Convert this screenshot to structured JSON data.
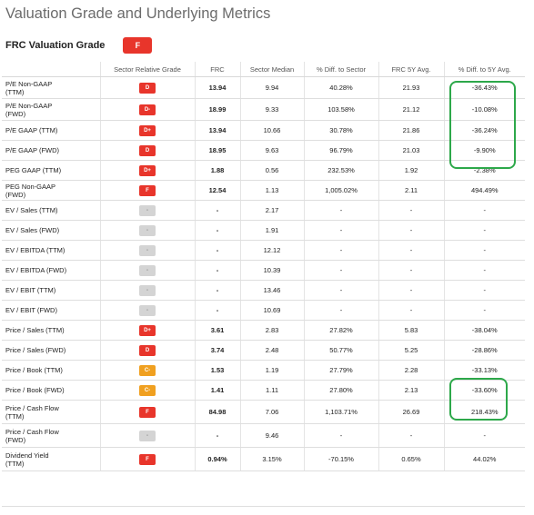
{
  "page_title": "Valuation Grade and Underlying Metrics",
  "valuation_grade": {
    "label": "FRC Valuation Grade",
    "grade": "F",
    "color": "#e8352b"
  },
  "columns": [
    "",
    "Sector Relative Grade",
    "FRC",
    "Sector Median",
    "% Diff. to Sector",
    "FRC 5Y Avg.",
    "% Diff. to 5Y Avg."
  ],
  "grade_colors": {
    "D": "#e8352b",
    "D-": "#e8352b",
    "D+": "#e8352b",
    "F": "#e8352b",
    "C-": "#f0a020",
    "-": "#d4d4d4"
  },
  "rows": [
    {
      "metric": [
        "P/E Non-GAAP",
        "(TTM)"
      ],
      "grade": "D",
      "frc": "13.94",
      "sector_median": "9.94",
      "diff_sector": "40.28%",
      "avg5y": "21.93",
      "diff_5y": "-36.43%"
    },
    {
      "metric": [
        "P/E Non-GAAP",
        "(FWD)"
      ],
      "grade": "D-",
      "frc": "18.99",
      "sector_median": "9.33",
      "diff_sector": "103.58%",
      "avg5y": "21.12",
      "diff_5y": "-10.08%"
    },
    {
      "metric": [
        "P/E GAAP (TTM)"
      ],
      "grade": "D+",
      "frc": "13.94",
      "sector_median": "10.66",
      "diff_sector": "30.78%",
      "avg5y": "21.86",
      "diff_5y": "-36.24%"
    },
    {
      "metric": [
        "P/E GAAP (FWD)"
      ],
      "grade": "D",
      "frc": "18.95",
      "sector_median": "9.63",
      "diff_sector": "96.79%",
      "avg5y": "21.03",
      "diff_5y": "-9.90%"
    },
    {
      "metric": [
        "PEG GAAP (TTM)"
      ],
      "grade": "D+",
      "frc": "1.88",
      "sector_median": "0.56",
      "diff_sector": "232.53%",
      "avg5y": "1.92",
      "diff_5y": "-2.38%"
    },
    {
      "metric": [
        "PEG Non-GAAP",
        "(FWD)"
      ],
      "grade": "F",
      "frc": "12.54",
      "sector_median": "1.13",
      "diff_sector": "1,005.02%",
      "avg5y": "2.11",
      "diff_5y": "494.49%"
    },
    {
      "metric": [
        "EV / Sales (TTM)"
      ],
      "grade": "-",
      "frc": "-",
      "sector_median": "2.17",
      "diff_sector": "-",
      "avg5y": "-",
      "diff_5y": "-"
    },
    {
      "metric": [
        "EV / Sales (FWD)"
      ],
      "grade": "-",
      "frc": "-",
      "sector_median": "1.91",
      "diff_sector": "-",
      "avg5y": "-",
      "diff_5y": "-"
    },
    {
      "metric": [
        "EV / EBITDA (TTM)"
      ],
      "grade": "-",
      "frc": "-",
      "sector_median": "12.12",
      "diff_sector": "-",
      "avg5y": "-",
      "diff_5y": "-"
    },
    {
      "metric": [
        "EV / EBITDA (FWD)"
      ],
      "grade": "-",
      "frc": "-",
      "sector_median": "10.39",
      "diff_sector": "-",
      "avg5y": "-",
      "diff_5y": "-"
    },
    {
      "metric": [
        "EV / EBIT (TTM)"
      ],
      "grade": "-",
      "frc": "-",
      "sector_median": "13.46",
      "diff_sector": "-",
      "avg5y": "-",
      "diff_5y": "-"
    },
    {
      "metric": [
        "EV / EBIT (FWD)"
      ],
      "grade": "-",
      "frc": "-",
      "sector_median": "10.69",
      "diff_sector": "-",
      "avg5y": "-",
      "diff_5y": "-"
    },
    {
      "metric": [
        "Price / Sales (TTM)"
      ],
      "grade": "D+",
      "frc": "3.61",
      "sector_median": "2.83",
      "diff_sector": "27.82%",
      "avg5y": "5.83",
      "diff_5y": "-38.04%"
    },
    {
      "metric": [
        "Price / Sales (FWD)"
      ],
      "grade": "D",
      "frc": "3.74",
      "sector_median": "2.48",
      "diff_sector": "50.77%",
      "avg5y": "5.25",
      "diff_5y": "-28.86%"
    },
    {
      "metric": [
        "Price / Book (TTM)"
      ],
      "grade": "C-",
      "frc": "1.53",
      "sector_median": "1.19",
      "diff_sector": "27.79%",
      "avg5y": "2.28",
      "diff_5y": "-33.13%"
    },
    {
      "metric": [
        "Price / Book (FWD)"
      ],
      "grade": "C-",
      "frc": "1.41",
      "sector_median": "1.11",
      "diff_sector": "27.80%",
      "avg5y": "2.13",
      "diff_5y": "-33.60%"
    },
    {
      "metric": [
        "Price / Cash Flow",
        "(TTM)"
      ],
      "grade": "F",
      "frc": "84.98",
      "sector_median": "7.06",
      "diff_sector": "1,103.71%",
      "avg5y": "26.69",
      "diff_5y": "218.43%"
    },
    {
      "metric": [
        "Price / Cash Flow",
        "(FWD)"
      ],
      "grade": "-",
      "frc": "-",
      "sector_median": "9.46",
      "diff_sector": "-",
      "avg5y": "-",
      "diff_5y": "-"
    },
    {
      "metric": [
        "Dividend Yield",
        "(TTM)"
      ],
      "grade": "F",
      "frc": "0.94%",
      "sector_median": "3.15%",
      "diff_sector": "-70.15%",
      "avg5y": "0.65%",
      "diff_5y": "44.02%"
    }
  ],
  "highlight_color": "#2da84a"
}
